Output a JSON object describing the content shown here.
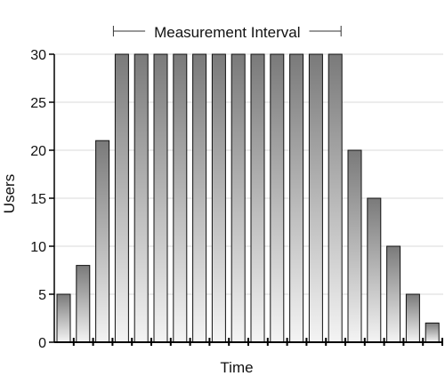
{
  "chart_data": {
    "type": "bar",
    "title": "",
    "xlabel": "Time",
    "ylabel": "Users",
    "ylim": [
      0,
      30
    ],
    "yticks": [
      0,
      5,
      10,
      15,
      20,
      25,
      30
    ],
    "grid": true,
    "values": [
      5,
      8,
      21,
      30,
      30,
      30,
      30,
      30,
      30,
      30,
      30,
      30,
      30,
      30,
      30,
      20,
      15,
      10,
      5,
      2
    ],
    "annotation": {
      "text": "Measurement Interval",
      "start_bar": 4,
      "end_bar": 15
    },
    "colors": {
      "bar_top": "#7a7a7a",
      "bar_bottom": "#f4f4f4",
      "bar_stroke": "#111111",
      "grid": "#d9d9d9",
      "axis": "#000000"
    }
  }
}
